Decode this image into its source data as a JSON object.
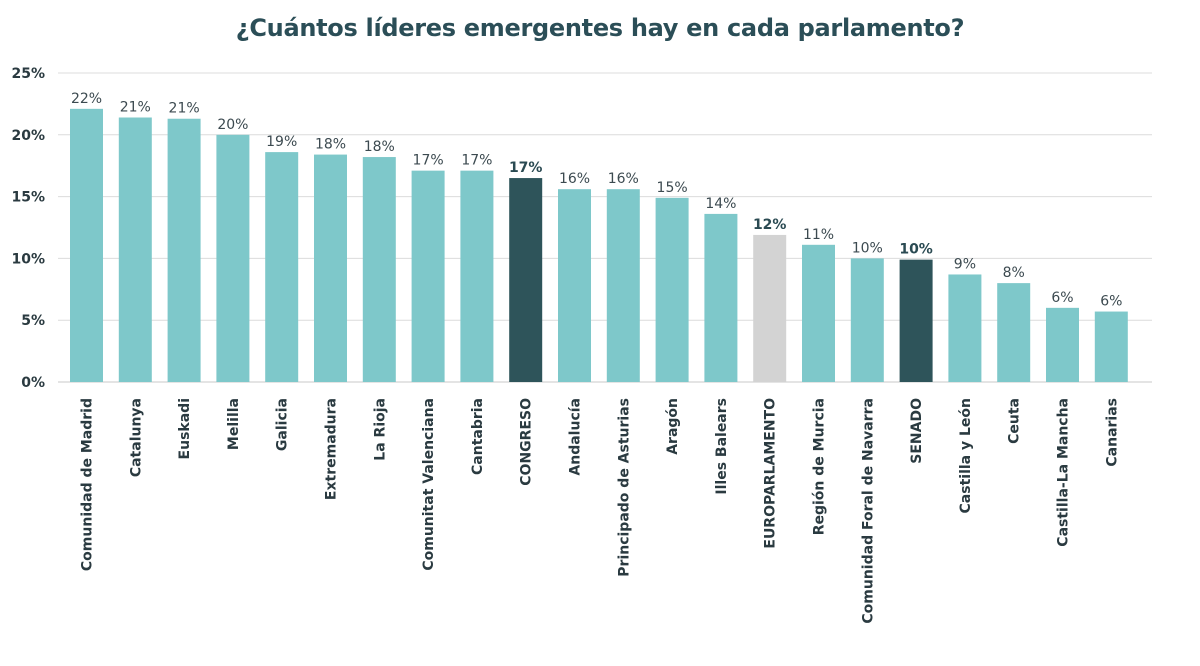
{
  "chart_data": {
    "type": "bar",
    "title": "¿Cuántos líderes emergentes hay en cada parlamento?",
    "xlabel": "",
    "ylabel": "",
    "ylim": [
      0,
      25
    ],
    "yticks": [
      0,
      5,
      10,
      15,
      20,
      25
    ],
    "ytick_labels": [
      "0%",
      "5%",
      "10%",
      "15%",
      "20%",
      "25%"
    ],
    "grid": true,
    "legend": "none",
    "colors": {
      "default": "#7ec8ca",
      "highlight": "#2e545a",
      "europe": "#d3d3d3"
    },
    "categories": [
      "Comunidad de Madrid",
      "Catalunya",
      "Euskadi",
      "Melilla",
      "Galicia",
      "Extremadura",
      "La Rioja",
      "Comunitat Valenciana",
      "Cantabria",
      "CONGRESO",
      "Andalucía",
      "Principado de Asturias",
      "Aragón",
      "Illes Balears",
      "EUROPARLAMENTO",
      "Región de Murcia",
      "Comunidad Foral de Navarra",
      "SENADO",
      "Castilla y León",
      "Ceuta",
      "Castilla-La Mancha",
      "Canarias"
    ],
    "values": [
      22.1,
      21.4,
      21.3,
      20.0,
      18.6,
      18.4,
      18.2,
      17.1,
      17.1,
      16.5,
      15.6,
      15.6,
      14.9,
      13.6,
      11.9,
      11.1,
      10.0,
      9.9,
      8.7,
      8.0,
      6.0,
      5.7
    ],
    "data_labels": [
      "22%",
      "21%",
      "21%",
      "20%",
      "19%",
      "18%",
      "18%",
      "17%",
      "17%",
      "17%",
      "16%",
      "16%",
      "15%",
      "14%",
      "12%",
      "11%",
      "10%",
      "10%",
      "9%",
      "8%",
      "6%",
      "6%"
    ],
    "bar_styles": [
      "default",
      "default",
      "default",
      "default",
      "default",
      "default",
      "default",
      "default",
      "default",
      "highlight",
      "default",
      "default",
      "default",
      "default",
      "europe",
      "default",
      "default",
      "highlight",
      "default",
      "default",
      "default",
      "default"
    ]
  }
}
